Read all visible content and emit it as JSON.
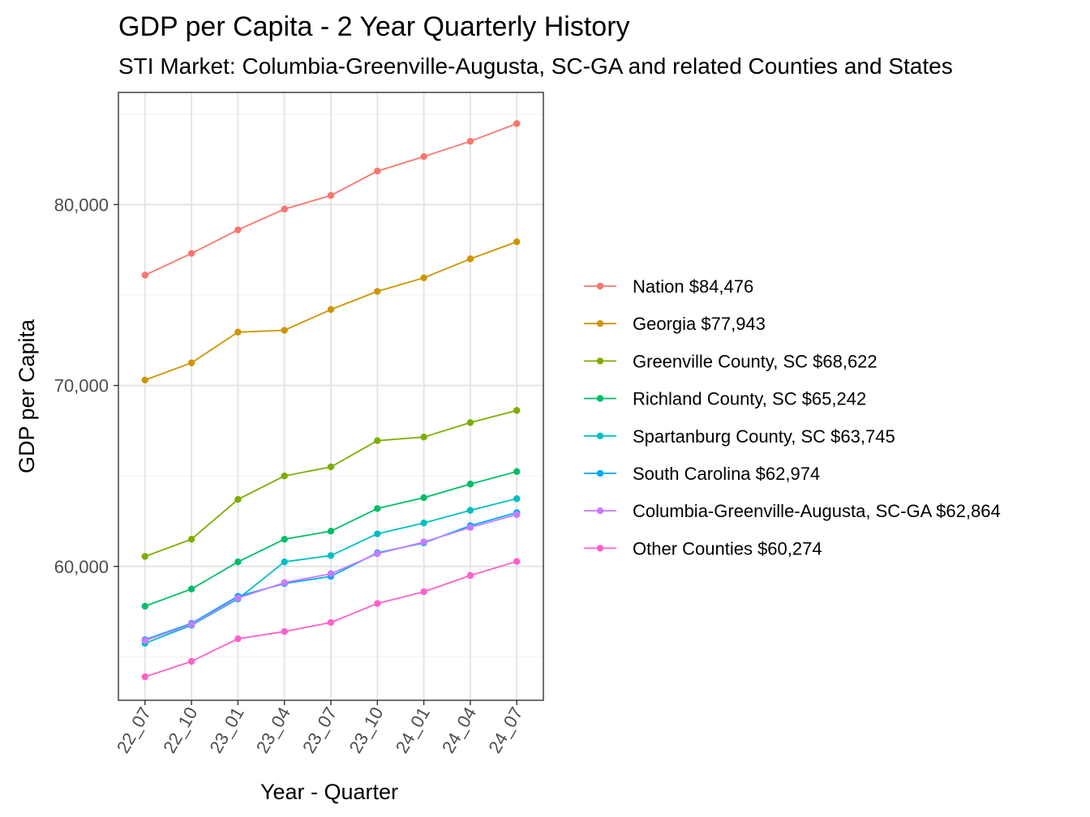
{
  "chart_data": {
    "type": "line",
    "title": "GDP per Capita - 2 Year Quarterly History",
    "subtitle": "STI Market: Columbia-Greenville-Augusta, SC-GA and related Counties and States",
    "xlabel": "Year - Quarter",
    "ylabel": "GDP per Capita",
    "categories": [
      "22_07",
      "22_10",
      "23_01",
      "23_04",
      "23_07",
      "23_10",
      "24_01",
      "24_04",
      "24_07"
    ],
    "ylim": [
      52600,
      86200
    ],
    "y_ticks": [
      60000,
      70000,
      80000
    ],
    "y_tick_labels": [
      "60,000",
      "70,000",
      "80,000"
    ],
    "grid": true,
    "legend_position": "right",
    "series": [
      {
        "name": "Nation $84,476",
        "color": "#F8766D",
        "values": [
          76100,
          77300,
          78600,
          79750,
          80500,
          81850,
          82650,
          83500,
          84476
        ]
      },
      {
        "name": "Georgia $77,943",
        "color": "#CD9600",
        "values": [
          70300,
          71250,
          72950,
          73050,
          74200,
          75200,
          75950,
          77000,
          77943
        ]
      },
      {
        "name": "Greenville County, SC $68,622",
        "color": "#7CAE00",
        "values": [
          60550,
          61500,
          63700,
          65000,
          65500,
          66950,
          67150,
          67950,
          68622
        ]
      },
      {
        "name": "Richland County, SC $65,242",
        "color": "#00BE67",
        "values": [
          57800,
          58750,
          60250,
          61500,
          61950,
          63200,
          63800,
          64550,
          65242
        ]
      },
      {
        "name": "Spartanburg County, SC $63,745",
        "color": "#00BFC4",
        "values": [
          55750,
          56750,
          58200,
          60250,
          60600,
          61800,
          62400,
          63100,
          63745
        ]
      },
      {
        "name": "South Carolina $62,974",
        "color": "#00A9FF",
        "values": [
          55950,
          56850,
          58350,
          59050,
          59450,
          60750,
          61300,
          62250,
          62974
        ]
      },
      {
        "name": "Columbia-Greenville-Augusta, SC-GA $62,864",
        "color": "#C77CFF",
        "values": [
          55900,
          56800,
          58250,
          59100,
          59600,
          60700,
          61350,
          62150,
          62864
        ]
      },
      {
        "name": "Other Counties $60,274",
        "color": "#FF61CC",
        "values": [
          53900,
          54750,
          56000,
          56400,
          56900,
          57950,
          58600,
          59500,
          60274
        ]
      }
    ]
  }
}
